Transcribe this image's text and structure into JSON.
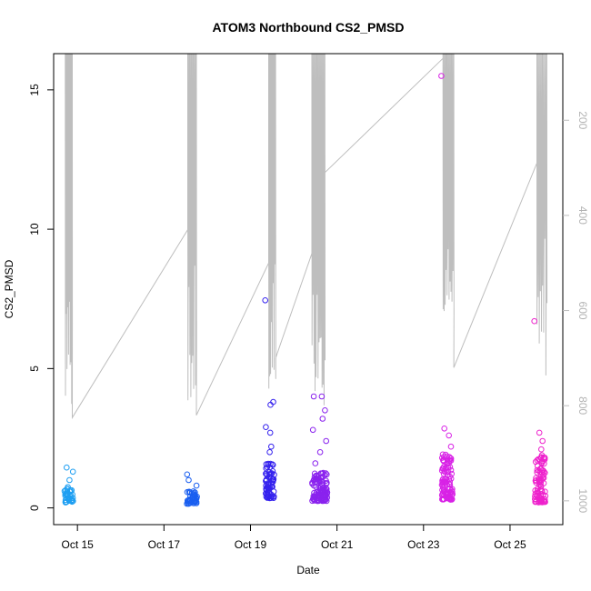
{
  "chart_data": {
    "type": "scatter",
    "title": "ATOM3 Northbound CS2_PMSD",
    "xlabel": "Date",
    "ylabel": "CS2_PMSD",
    "x_ticks": [
      "Oct 15",
      "Oct 17",
      "Oct 19",
      "Oct 21",
      "Oct 23",
      "Oct 25"
    ],
    "x_tick_positions_days": [
      15,
      17,
      19,
      21,
      23,
      25
    ],
    "xlim_days": [
      14.45,
      26.22
    ],
    "ylim": [
      -0.6,
      16.3
    ],
    "y_ticks": [
      0,
      5,
      10,
      15
    ],
    "right_axis": {
      "ylim_reversed": [
        1050,
        60
      ],
      "ticks": [
        200,
        400,
        600,
        800,
        1000
      ],
      "color": "#bebebe"
    },
    "colors": {
      "line": "#bebebe",
      "gradient_start": "#1e9ff2",
      "gradient_mid": "#2233ee",
      "gradient_mid2": "#8a22ee",
      "gradient_end": "#ee22cc"
    },
    "scatter_clusters": [
      {
        "day": 14.8,
        "width": 0.2,
        "n": 40,
        "ymin": 0.2,
        "ymax": 0.75,
        "outliers": [
          1.0,
          1.3,
          1.45
        ],
        "color": "#1e9ff2"
      },
      {
        "day": 17.65,
        "width": 0.25,
        "n": 45,
        "ymin": 0.15,
        "ymax": 0.6,
        "outliers": [
          0.8,
          1.0,
          1.2
        ],
        "color": "#1a5ff0"
      },
      {
        "day": 19.45,
        "width": 0.2,
        "n": 70,
        "ymin": 0.35,
        "ymax": 1.6,
        "outliers": [
          2.0,
          2.2,
          2.7,
          2.9,
          3.7,
          3.8,
          7.45
        ],
        "color": "#3522ee"
      },
      {
        "day": 20.6,
        "width": 0.35,
        "n": 110,
        "ymin": 0.25,
        "ymax": 1.3,
        "outliers": [
          1.6,
          2.0,
          2.4,
          2.8,
          3.2,
          3.5,
          4.0,
          4.0
        ],
        "color": "#8a22ee"
      },
      {
        "day": 23.55,
        "width": 0.25,
        "n": 100,
        "ymin": 0.3,
        "ymax": 2.0,
        "outliers": [
          2.2,
          2.6,
          2.85,
          15.5
        ],
        "color": "#d822e6"
      },
      {
        "day": 25.7,
        "width": 0.25,
        "n": 90,
        "ymin": 0.2,
        "ymax": 1.9,
        "outliers": [
          2.1,
          2.4,
          2.7,
          6.7
        ],
        "color": "#ee22cc"
      }
    ],
    "line_segments": [
      {
        "start": 14.72,
        "end": 14.88,
        "top": 60,
        "bottom": 825,
        "n": 10
      },
      {
        "from": [
          14.88,
          825
        ],
        "to": [
          17.55,
          430
        ]
      },
      {
        "start": 17.55,
        "end": 17.75,
        "top": 60,
        "bottom": 820,
        "n": 10
      },
      {
        "from": [
          17.75,
          820
        ],
        "to": [
          19.42,
          500
        ]
      },
      {
        "start": 19.42,
        "end": 19.58,
        "top": 60,
        "bottom": 790,
        "n": 9
      },
      {
        "from": [
          19.58,
          700
        ],
        "to": [
          20.42,
          480
        ]
      },
      {
        "start": 20.42,
        "end": 20.72,
        "top": 60,
        "bottom": 800,
        "n": 14
      },
      {
        "from": [
          20.72,
          310
        ],
        "to": [
          23.45,
          70
        ]
      },
      {
        "start": 23.45,
        "end": 23.7,
        "top": 60,
        "bottom": 660,
        "n": 12
      },
      {
        "from": [
          23.7,
          720
        ],
        "to": [
          25.62,
          290
        ]
      },
      {
        "start": 25.62,
        "end": 25.85,
        "top": 60,
        "bottom": 765,
        "n": 10
      }
    ]
  }
}
